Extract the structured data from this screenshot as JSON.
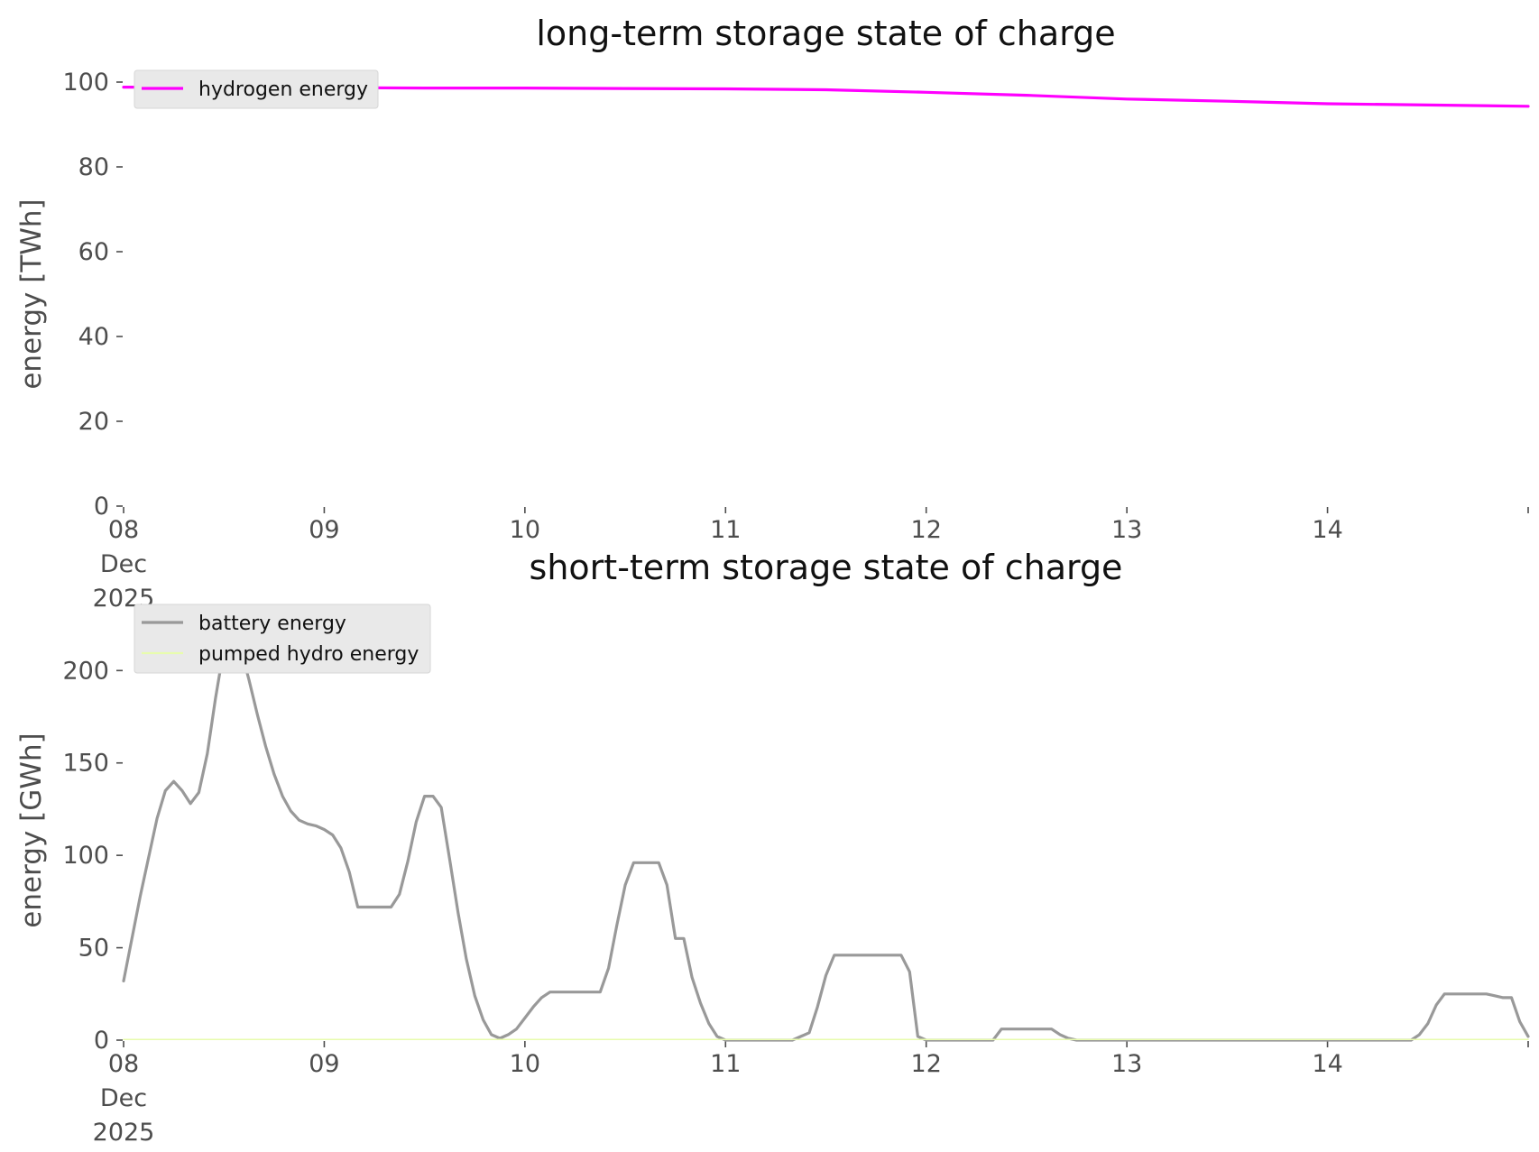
{
  "chart_data": [
    {
      "type": "line",
      "title": "long-term storage state of charge",
      "xlabel": "",
      "ylabel": "energy [TWh]",
      "ylim": [
        0,
        100
      ],
      "yticks": [
        0,
        20,
        40,
        60,
        80,
        100
      ],
      "xlim": [
        0,
        7
      ],
      "xticks": [
        0,
        1,
        2,
        3,
        4,
        5,
        6,
        7
      ],
      "xtick_labels": [
        [
          "08",
          "Dec",
          "2025"
        ],
        [
          "09"
        ],
        [
          "10"
        ],
        [
          "11"
        ],
        [
          "12"
        ],
        [
          "13"
        ],
        [
          "14"
        ],
        [
          ""
        ]
      ],
      "legend": "top-left",
      "grid": false,
      "series": [
        {
          "name": "hydrogen energy",
          "color": "#ff00ff",
          "x": [
            0,
            0.5,
            1,
            1.5,
            2,
            2.5,
            3,
            3.5,
            4,
            4.5,
            5,
            5.5,
            6,
            6.5,
            7
          ],
          "values": [
            98.8,
            98.8,
            98.7,
            98.6,
            98.6,
            98.5,
            98.4,
            98.2,
            97.6,
            96.9,
            96.0,
            95.5,
            94.9,
            94.6,
            94.3
          ]
        }
      ]
    },
    {
      "type": "line",
      "title": "short-term storage state of charge",
      "xlabel": "",
      "ylabel": "energy [GWh]",
      "ylim": [
        0,
        227
      ],
      "yticks": [
        0,
        50,
        100,
        150,
        200
      ],
      "xlim": [
        0,
        7
      ],
      "xticks": [
        0,
        1,
        2,
        3,
        4,
        5,
        6,
        7
      ],
      "xtick_labels": [
        [
          "08",
          "Dec",
          "2025"
        ],
        [
          "09"
        ],
        [
          "10"
        ],
        [
          "11"
        ],
        [
          "12"
        ],
        [
          "13"
        ],
        [
          "14"
        ],
        [
          ""
        ]
      ],
      "legend": "top-left",
      "grid": false,
      "series": [
        {
          "name": "battery energy",
          "color": "#999999",
          "x": [
            0,
            0.083,
            0.167,
            0.208,
            0.25,
            0.292,
            0.333,
            0.375,
            0.417,
            0.458,
            0.5,
            0.542,
            0.583,
            0.625,
            0.667,
            0.708,
            0.75,
            0.792,
            0.833,
            0.875,
            0.917,
            0.958,
            1.0,
            1.042,
            1.083,
            1.125,
            1.167,
            1.208,
            1.25,
            1.333,
            1.375,
            1.417,
            1.458,
            1.5,
            1.542,
            1.583,
            1.625,
            1.667,
            1.708,
            1.75,
            1.792,
            1.833,
            1.875,
            1.917,
            1.958,
            2.0,
            2.042,
            2.083,
            2.125,
            2.167,
            2.208,
            2.25,
            2.375,
            2.417,
            2.458,
            2.5,
            2.542,
            2.583,
            2.625,
            2.667,
            2.708,
            2.75,
            2.792,
            2.833,
            2.875,
            2.917,
            2.958,
            3.0,
            3.333,
            3.375,
            3.417,
            3.458,
            3.5,
            3.542,
            3.583,
            3.875,
            3.917,
            3.958,
            4.0,
            4.333,
            4.375,
            4.417,
            4.583,
            4.625,
            4.667,
            4.708,
            4.75,
            6.375,
            6.417,
            6.458,
            6.5,
            6.542,
            6.583,
            6.75,
            6.792,
            6.833,
            6.875,
            6.917,
            6.958,
            7.0
          ],
          "values": [
            32,
            78,
            120,
            135,
            140,
            135,
            128,
            134,
            155,
            185,
            212,
            222,
            212,
            195,
            176,
            159,
            144,
            132,
            124,
            119,
            117,
            116,
            114,
            111,
            104,
            91,
            72,
            72,
            72,
            72,
            79,
            97,
            118,
            132,
            132,
            126,
            98,
            69,
            44,
            24,
            11,
            3,
            1,
            3,
            6,
            12,
            18,
            23,
            26,
            26,
            26,
            26,
            26,
            39,
            62,
            84,
            96,
            96,
            96,
            96,
            84,
            55,
            55,
            34,
            20,
            9,
            2,
            0,
            0,
            2,
            4,
            18,
            35,
            46,
            46,
            46,
            37,
            2,
            0,
            0,
            6,
            6,
            6,
            6,
            3,
            1,
            0,
            0,
            0,
            3,
            9,
            19,
            25,
            25,
            25,
            24,
            23,
            23,
            10,
            2
          ]
        },
        {
          "name": "pumped hydro energy",
          "color": "#e8fcae",
          "x": [
            0,
            7
          ],
          "values": [
            0.4,
            0.4
          ]
        }
      ]
    }
  ]
}
